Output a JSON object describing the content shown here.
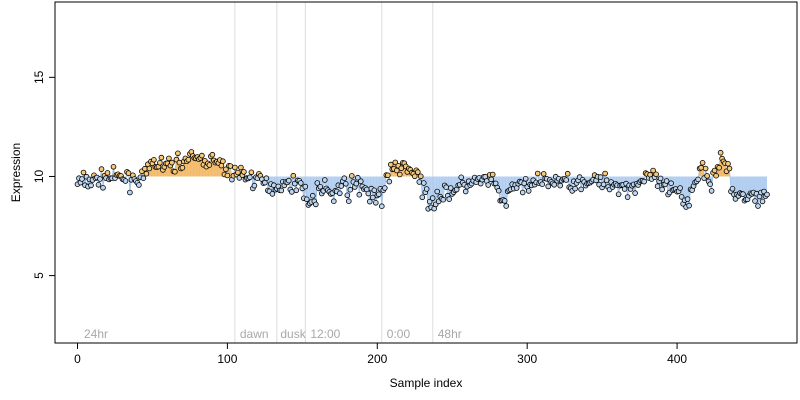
{
  "colors": {
    "above_fill": "#f2b25a",
    "below_fill": "#a9c8ee",
    "above_line": "#f0a030",
    "below_line": "#8ab4e0",
    "divider": "#dddddd",
    "region_text": "#a8a8a8",
    "point_outline": "#000000"
  },
  "chart_data": {
    "type": "scatter",
    "title": "",
    "xlabel": "Sample index",
    "ylabel": "Expression",
    "xlim": [
      -15,
      480
    ],
    "ylim": [
      1.6,
      18.8
    ],
    "xticks": [
      0,
      100,
      200,
      300,
      400
    ],
    "yticks": [
      5,
      10,
      15
    ],
    "xtick_labels": [
      "0",
      "100",
      "200",
      "300",
      "400"
    ],
    "ytick_labels": [
      "5",
      "10",
      "15"
    ],
    "baseline": 10,
    "grid": false,
    "dividers": [
      105,
      133,
      152,
      203,
      237
    ],
    "region_labels": [
      {
        "text": "24hr",
        "x": 3
      },
      {
        "text": "dawn",
        "x": 107
      },
      {
        "text": "dusk",
        "x": 134
      },
      {
        "text": "12:00",
        "x": 154
      },
      {
        "text": "0:00",
        "x": 205
      },
      {
        "text": "48hr",
        "x": 239
      }
    ],
    "anchors": [
      [
        0,
        9.7
      ],
      [
        10,
        9.8
      ],
      [
        20,
        10.0
      ],
      [
        30,
        9.9
      ],
      [
        45,
        9.9
      ],
      [
        50,
        10.7
      ],
      [
        60,
        10.5
      ],
      [
        70,
        10.8
      ],
      [
        80,
        10.9
      ],
      [
        90,
        10.8
      ],
      [
        100,
        10.3
      ],
      [
        110,
        10.1
      ],
      [
        120,
        9.8
      ],
      [
        130,
        9.5
      ],
      [
        140,
        9.6
      ],
      [
        148,
        9.7
      ],
      [
        152,
        9.3
      ],
      [
        155,
        8.5
      ],
      [
        160,
        9.3
      ],
      [
        170,
        9.2
      ],
      [
        180,
        9.4
      ],
      [
        190,
        9.6
      ],
      [
        196,
        9.0
      ],
      [
        200,
        8.6
      ],
      [
        205,
        9.6
      ],
      [
        210,
        10.2
      ],
      [
        215,
        10.6
      ],
      [
        220,
        10.4
      ],
      [
        225,
        10.3
      ],
      [
        230,
        9.2
      ],
      [
        235,
        8.9
      ],
      [
        245,
        9.1
      ],
      [
        255,
        9.5
      ],
      [
        265,
        9.7
      ],
      [
        275,
        9.8
      ],
      [
        280,
        9.4
      ],
      [
        285,
        8.5
      ],
      [
        290,
        9.5
      ],
      [
        300,
        9.6
      ],
      [
        310,
        9.7
      ],
      [
        320,
        9.8
      ],
      [
        330,
        9.7
      ],
      [
        340,
        9.8
      ],
      [
        350,
        9.7
      ],
      [
        360,
        9.6
      ],
      [
        370,
        9.4
      ],
      [
        380,
        10.1
      ],
      [
        390,
        9.5
      ],
      [
        400,
        9.1
      ],
      [
        405,
        8.6
      ],
      [
        412,
        9.8
      ],
      [
        418,
        10.6
      ],
      [
        422,
        9.8
      ],
      [
        428,
        10.8
      ],
      [
        433,
        10.6
      ],
      [
        438,
        8.9
      ],
      [
        445,
        9.0
      ],
      [
        452,
        9.0
      ],
      [
        460,
        9.0
      ]
    ],
    "n_points": 461,
    "seed": 7
  }
}
